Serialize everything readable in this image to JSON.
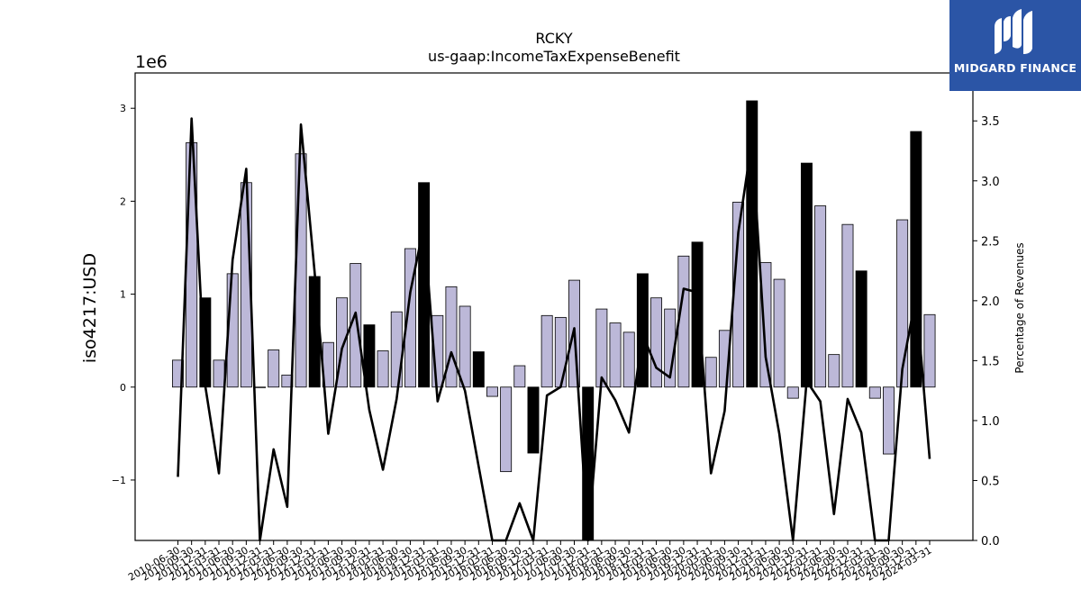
{
  "chart_data": {
    "type": "bar",
    "title": "RCKY",
    "subtitle": "us-gaap:IncomeTaxExpenseBenefit",
    "ylabel": "iso4217:USD",
    "y2label": "Percentage of Revenues",
    "offset_label": "1e6",
    "ylim": [
      -1.65,
      3.38
    ],
    "y2lim": [
      0.0,
      3.9
    ],
    "yticks": [
      -1,
      0,
      1,
      2,
      3
    ],
    "yticklabels": [
      "−1",
      "0",
      "1",
      "2",
      "3"
    ],
    "y2ticks": [
      0.0,
      0.5,
      1.0,
      1.5,
      2.0,
      2.5,
      3.0,
      3.5
    ],
    "y2ticklabels": [
      "0.0",
      "0.5",
      "1.0",
      "1.5",
      "2.0",
      "2.5",
      "3.0",
      "3.5"
    ],
    "grid": false,
    "categories": [
      "2010-06-30",
      "2010-09-30",
      "2010-12-31",
      "2011-03-31",
      "2011-06-30",
      "2011-09-30",
      "2011-12-31",
      "2012-03-31",
      "2012-06-30",
      "2012-09-30",
      "2012-12-31",
      "2013-03-31",
      "2013-06-30",
      "2013-09-30",
      "2013-12-31",
      "2014-03-31",
      "2014-06-30",
      "2014-09-30",
      "2014-12-31",
      "2015-03-31",
      "2015-06-30",
      "2015-09-30",
      "2015-12-31",
      "2016-03-31",
      "2016-06-30",
      "2016-09-30",
      "2016-12-31",
      "2017-03-31",
      "2017-06-30",
      "2017-09-30",
      "2017-12-31",
      "2018-03-31",
      "2018-06-30",
      "2018-09-30",
      "2018-12-31",
      "2019-03-31",
      "2019-06-30",
      "2019-09-30",
      "2019-12-31",
      "2020-03-31",
      "2020-06-30",
      "2020-09-30",
      "2020-12-31",
      "2021-03-31",
      "2021-06-30",
      "2021-09-30",
      "2021-12-31",
      "2022-03-31",
      "2022-06-30",
      "2022-09-30",
      "2022-12-31",
      "2023-03-31",
      "2023-06-30",
      "2023-09-30",
      "2023-12-31",
      "2024-03-31"
    ],
    "xticklabels": [
      "2010-06-30",
      "2010-09-30",
      "2010-12-31",
      "2011-03-31",
      "2011-06-30",
      "2011-09-30",
      "2011-12-31",
      "2012-03-31",
      "2012-06-30",
      "2012-09-30",
      "2012-12-31",
      "2013-03-31",
      "2013-06-30",
      "2013-09-30",
      "2013-12-31",
      "2014-03-31",
      "2014-06-30",
      "2014-09-30",
      "2014-12-31",
      "2015-03-31",
      "2015-06-30",
      "2015-09-30",
      "2015-12-31",
      "2016-03-31",
      "2016-06-30",
      "2016-09-30",
      "2016-12-31",
      "2017-03-31",
      "2017-06-30",
      "2017-09-30",
      "2017-12-31",
      "2018-03-31",
      "2018-06-30",
      "2018-09-30",
      "2018-12-31",
      "2019-03-31",
      "2019-06-30",
      "2019-09-30",
      "2019-12-31",
      "2020-03-31",
      "2020-06-30",
      "2020-09-30",
      "2020-12-31",
      "2021-03-31",
      "2021-06-30",
      "2021-09-30",
      "2021-12-31",
      "2022-03-31",
      "2022-06-30",
      "2022-09-30",
      "2022-12-31",
      "2023-03-31",
      "2023-06-30",
      "2023-09-30",
      "2023-12-31",
      "2024-03-31"
    ],
    "bars": {
      "name": "IncomeTaxExpenseBenefit",
      "values": [
        0.29,
        2.63,
        0.96,
        0.29,
        1.22,
        2.2,
        0.0,
        0.4,
        0.13,
        2.51,
        1.19,
        0.48,
        0.96,
        1.33,
        0.67,
        0.39,
        0.81,
        1.49,
        2.2,
        0.77,
        1.08,
        0.87,
        0.38,
        -0.1,
        -0.91,
        0.23,
        -0.71,
        0.77,
        0.75,
        1.15,
        -1.65,
        0.84,
        0.69,
        0.59,
        1.22,
        0.96,
        0.84,
        1.41,
        1.56,
        0.32,
        0.61,
        1.99,
        3.08,
        1.34,
        1.16,
        -0.12,
        2.41,
        1.95,
        0.35,
        1.75,
        1.25,
        -0.12,
        -0.72,
        1.8,
        2.75,
        0.78
      ],
      "highlight": [
        false,
        false,
        true,
        false,
        false,
        false,
        false,
        false,
        false,
        false,
        true,
        false,
        false,
        false,
        true,
        false,
        false,
        false,
        true,
        false,
        false,
        false,
        true,
        false,
        false,
        false,
        true,
        false,
        false,
        false,
        true,
        false,
        false,
        false,
        true,
        false,
        false,
        false,
        true,
        false,
        false,
        false,
        true,
        false,
        false,
        false,
        true,
        false,
        false,
        false,
        true,
        false,
        false,
        false,
        true,
        false
      ],
      "color": "#bcb8d8",
      "highlight_color": "#000000"
    },
    "line": {
      "name": "Percentage of Revenues",
      "values": [
        0.53,
        3.52,
        1.29,
        0.56,
        2.34,
        3.1,
        0.0,
        0.76,
        0.28,
        3.47,
        2.24,
        0.89,
        1.6,
        1.9,
        1.09,
        0.59,
        1.18,
        2.07,
        2.63,
        1.16,
        1.57,
        1.25,
        0.62,
        0.0,
        0.0,
        0.31,
        0.0,
        1.21,
        1.28,
        1.77,
        0.0,
        1.36,
        1.17,
        0.9,
        1.72,
        1.44,
        1.36,
        2.1,
        2.07,
        0.56,
        1.08,
        2.57,
        3.34,
        1.53,
        0.89,
        0.0,
        1.33,
        1.16,
        0.22,
        1.18,
        0.9,
        0.0,
        0.0,
        1.43,
        2.04,
        0.68
      ],
      "color": "#000000"
    }
  },
  "logo": {
    "text": "MIDGARD FINANCE",
    "color": "#2b55a6"
  }
}
